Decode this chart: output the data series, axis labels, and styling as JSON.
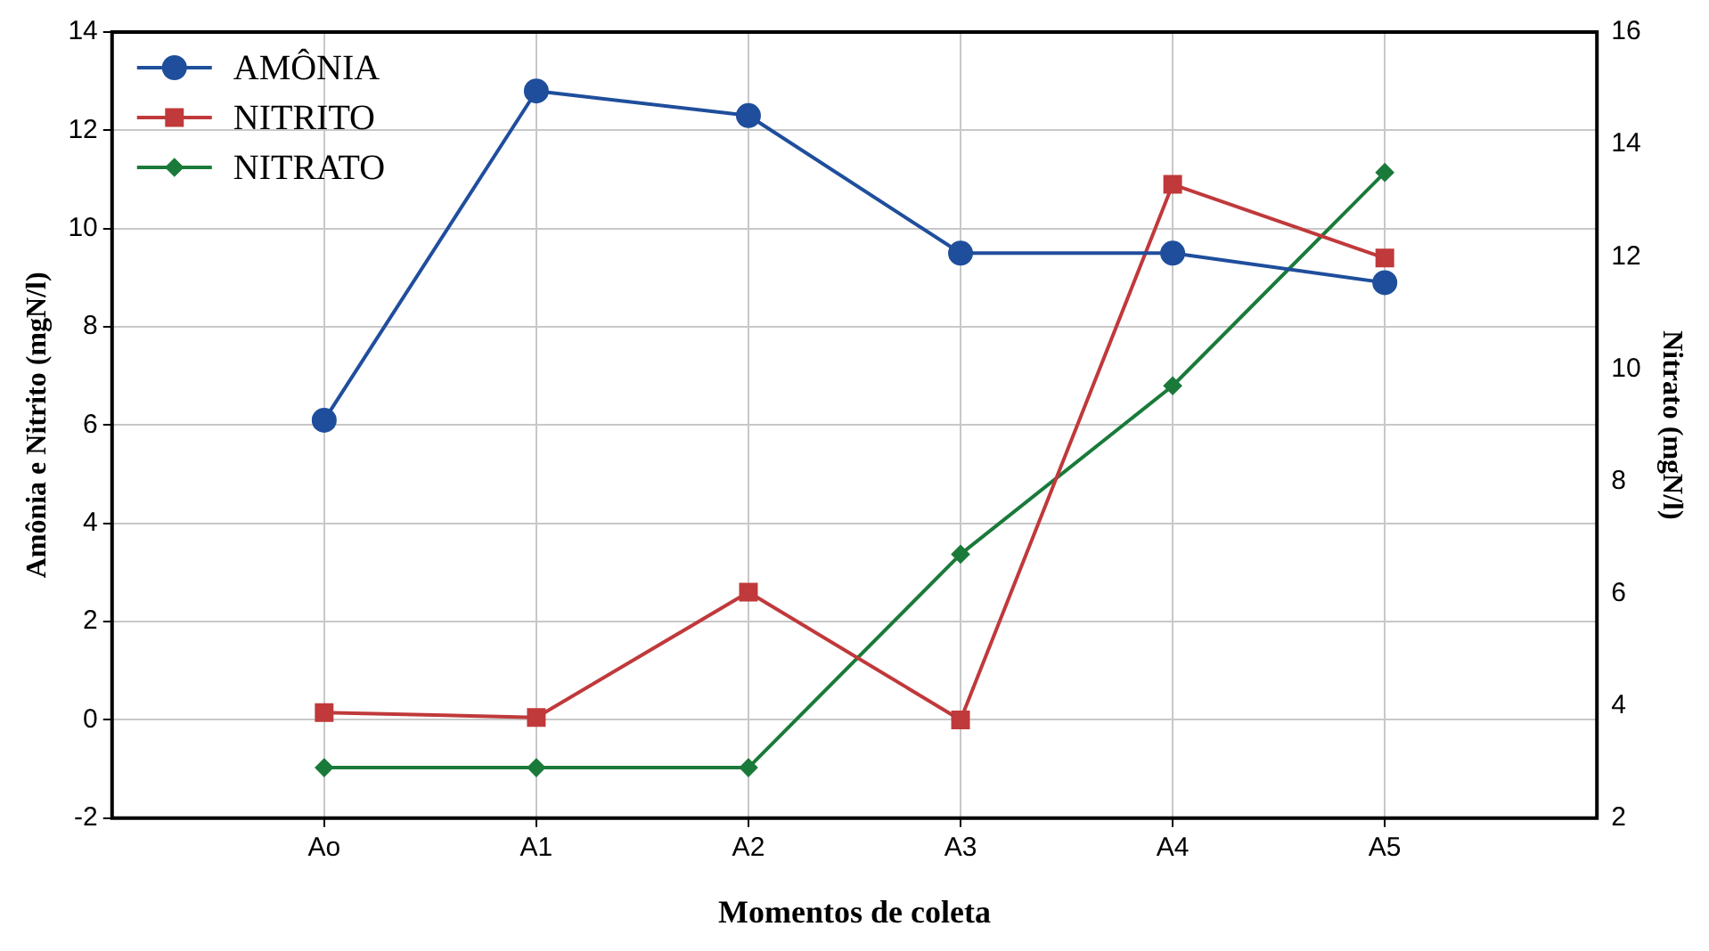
{
  "chart_data": {
    "type": "line",
    "categories": [
      "Ao",
      "A1",
      "A2",
      "A3",
      "A4",
      "A5"
    ],
    "xlabel": "Momentos de coleta",
    "ylabel": "Amônia e Nitrito (mgN/l)",
    "y2label": "Nitrato (mgN/l)",
    "series": [
      {
        "name": "AMÔNIA",
        "color": "#1f4e9c",
        "marker": "circle",
        "values": [
          6.1,
          12.8,
          12.3,
          9.5,
          9.5,
          8.9
        ]
      },
      {
        "name": "NITRITO",
        "color": "#c0393b",
        "marker": "square",
        "values": [
          0.15,
          0.05,
          2.6,
          0.0,
          10.9,
          9.4
        ]
      },
      {
        "name": "NITRATO",
        "color": "#1a7a3a",
        "marker": "diamond",
        "axis": "y2",
        "values": [
          2.9,
          2.9,
          2.9,
          6.7,
          9.7,
          13.5
        ]
      }
    ],
    "ylim": [
      -2,
      14
    ],
    "yticks": [
      -2,
      0,
      2,
      4,
      6,
      8,
      10,
      12,
      14
    ],
    "y2lim": [
      2,
      16
    ],
    "y2ticks": [
      2,
      4,
      6,
      8,
      10,
      12,
      14,
      16
    ],
    "grid": true,
    "legend": "top left"
  }
}
